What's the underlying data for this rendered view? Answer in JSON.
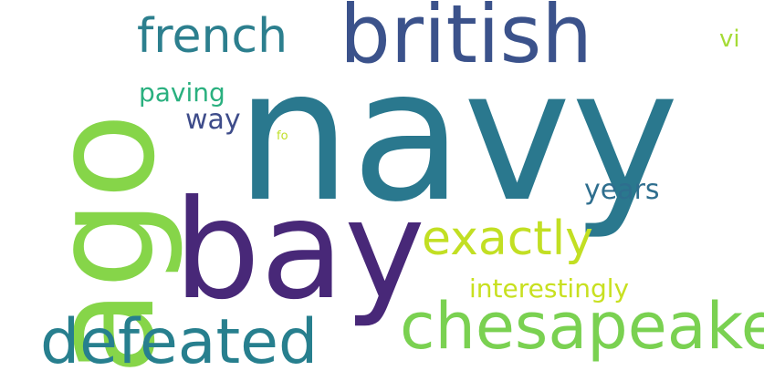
{
  "words": {
    "navy": "navy",
    "british": "british",
    "french": "french",
    "vi": "vi",
    "paving": "paving",
    "way": "way",
    "fo": "fo",
    "years": "years",
    "bay": "bay",
    "exactly": "exactly",
    "interestingly": "interestingly",
    "chesapeake": "chesapeake",
    "defeated": "defeated",
    "ago": "ago"
  },
  "colors": {
    "navy": "#2a788e",
    "british": "#3b528b",
    "french": "#2c7f8e",
    "vi": "#a5db36",
    "paving": "#2ab07f",
    "way": "#3e4c8a",
    "fo": "#c0df25",
    "years": "#2e6e8e",
    "bay": "#482878",
    "exactly": "#c2df23",
    "interestingly": "#c8e020",
    "chesapeake": "#7ad151",
    "defeated": "#277f8e",
    "ago": "#86d549"
  }
}
